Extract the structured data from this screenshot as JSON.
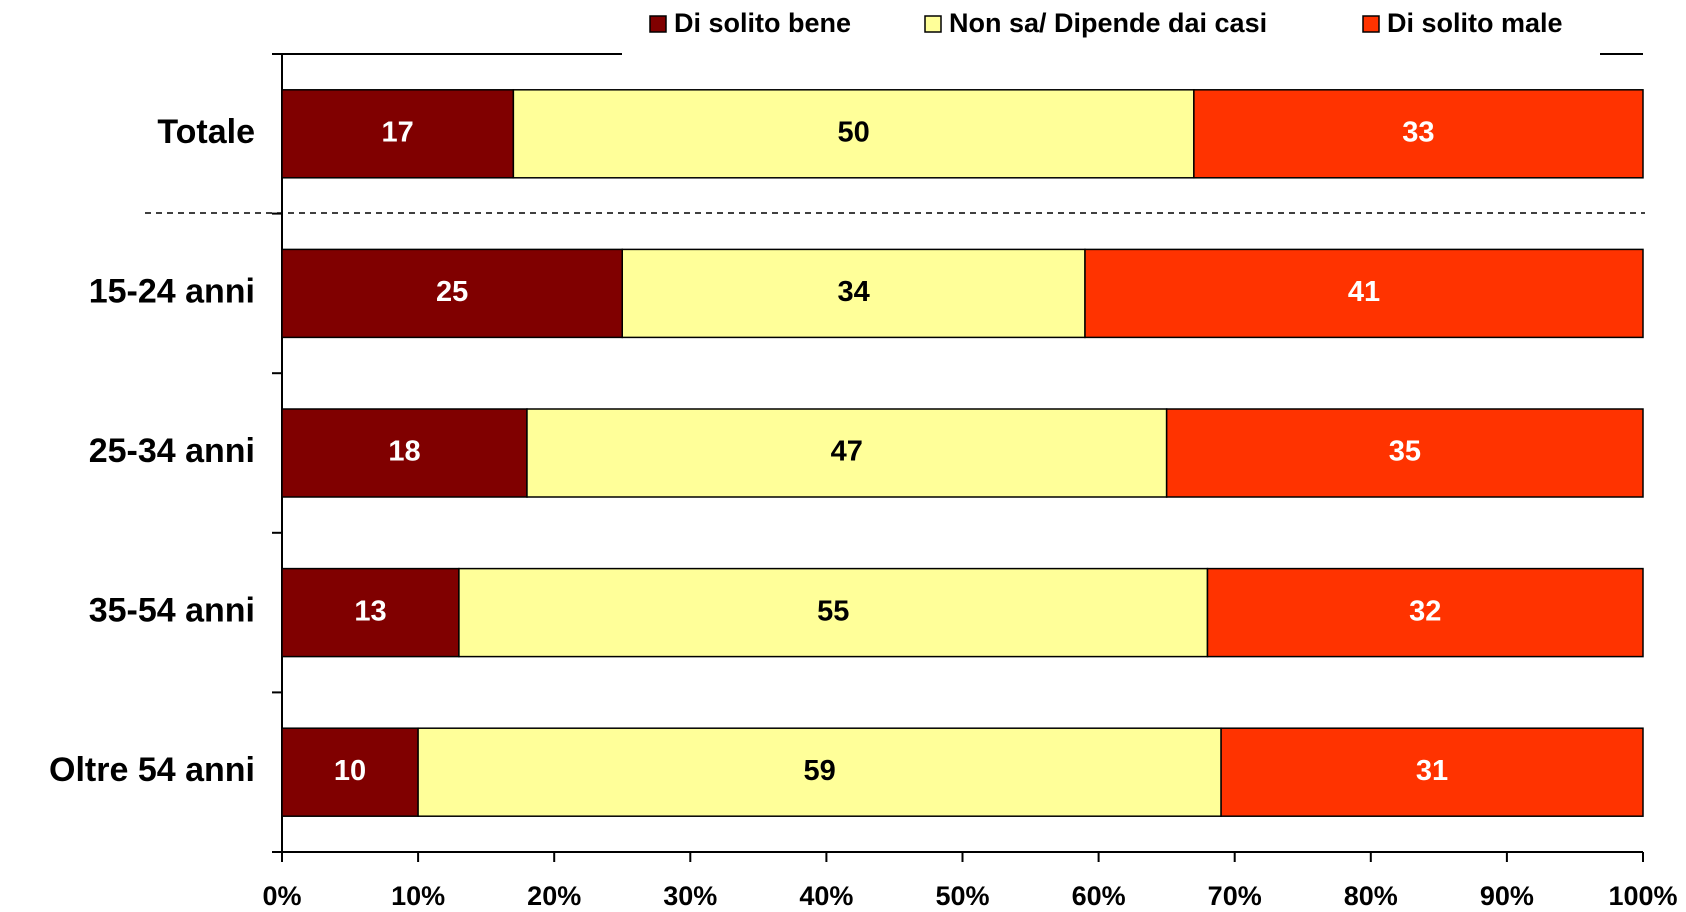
{
  "chart_data": {
    "type": "stacked_bar_horizontal",
    "categories": [
      "Totale",
      "15-24 anni",
      "25-34 anni",
      "35-54 anni",
      "Oltre 54 anni"
    ],
    "series": [
      {
        "name": "Di solito bene",
        "color": "#800000",
        "values": [
          17,
          25,
          18,
          13,
          10
        ]
      },
      {
        "name": "Non sa/ Dipende dai casi",
        "color": "#ffff99",
        "values": [
          50,
          34,
          47,
          55,
          59
        ]
      },
      {
        "name": "Di solito male",
        "color": "#ff3300",
        "values": [
          33,
          41,
          35,
          32,
          31
        ]
      }
    ],
    "xlim": [
      0,
      100
    ],
    "xticks": [
      {
        "value": 0,
        "label": "0%"
      },
      {
        "value": 10,
        "label": "10%"
      },
      {
        "value": 20,
        "label": "20%"
      },
      {
        "value": 30,
        "label": "30%"
      },
      {
        "value": 40,
        "label": "40%"
      },
      {
        "value": 50,
        "label": "50%"
      },
      {
        "value": 60,
        "label": "60%"
      },
      {
        "value": 70,
        "label": "70%"
      },
      {
        "value": 80,
        "label": "80%"
      },
      {
        "value": 90,
        "label": "90%"
      },
      {
        "value": 100,
        "label": "100%"
      }
    ],
    "legend": "top"
  }
}
